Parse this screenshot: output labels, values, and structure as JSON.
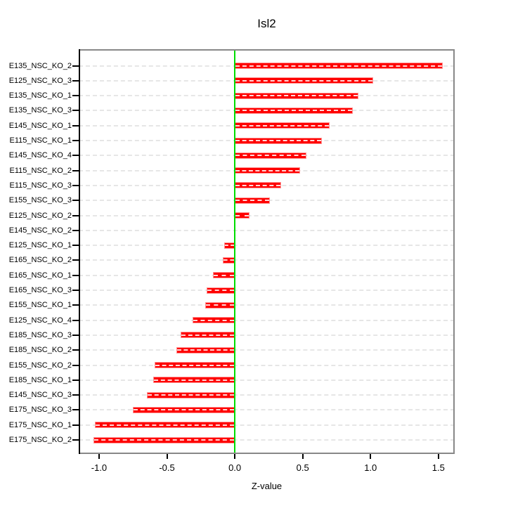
{
  "title": "Isl2",
  "chart_data": {
    "type": "bar",
    "orientation": "horizontal",
    "title": "Isl2",
    "xlabel": "Z-value",
    "ylabel": "",
    "categories": [
      "E135_NSC_KO_2",
      "E125_NSC_KO_3",
      "E135_NSC_KO_1",
      "E135_NSC_KO_3",
      "E145_NSC_KO_1",
      "E115_NSC_KO_1",
      "E145_NSC_KO_4",
      "E115_NSC_KO_2",
      "E115_NSC_KO_3",
      "E155_NSC_KO_3",
      "E125_NSC_KO_2",
      "E145_NSC_KO_2",
      "E125_NSC_KO_1",
      "E165_NSC_KO_2",
      "E165_NSC_KO_1",
      "E165_NSC_KO_3",
      "E155_NSC_KO_1",
      "E125_NSC_KO_4",
      "E185_NSC_KO_3",
      "E185_NSC_KO_2",
      "E155_NSC_KO_2",
      "E185_NSC_KO_1",
      "E145_NSC_KO_3",
      "E175_NSC_KO_3",
      "E175_NSC_KO_1",
      "E175_NSC_KO_2"
    ],
    "values": [
      1.53,
      1.02,
      0.91,
      0.87,
      0.7,
      0.64,
      0.53,
      0.48,
      0.34,
      0.26,
      0.11,
      0.005,
      -0.08,
      -0.09,
      -0.16,
      -0.21,
      -0.22,
      -0.31,
      -0.4,
      -0.43,
      -0.59,
      -0.6,
      -0.65,
      -0.75,
      -1.03,
      -1.04
    ],
    "xlim": [
      -1.15,
      1.62
    ],
    "xticks": [
      -1.0,
      -0.5,
      0.0,
      0.5,
      1.0,
      1.5
    ],
    "xtick_labels": [
      "-1.0",
      "-0.5",
      "0.0",
      "0.5",
      "1.0",
      "1.5"
    ],
    "grid": true,
    "legend": "none",
    "bar_color": "#ff0000",
    "zero_line_color": "#00dd00",
    "grid_color": "#e6e6e6",
    "box_color": "#888888",
    "axis_color": "#000000"
  }
}
